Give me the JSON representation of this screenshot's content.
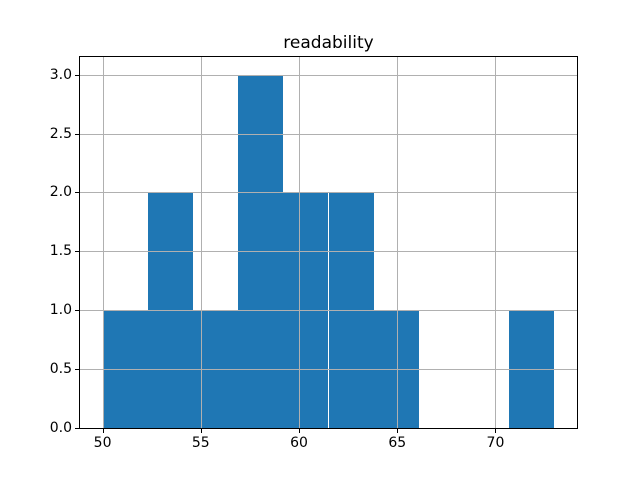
{
  "figure": {
    "title": "readability"
  },
  "colors": {
    "bar": "#1f77b4",
    "grid": "#b0b0b0",
    "spine": "#000000",
    "background": "#ffffff",
    "text": "#000000"
  },
  "chart_data": {
    "type": "bar",
    "subtype": "histogram",
    "title": "readability",
    "xlabel": "",
    "ylabel": "",
    "bin_edges": [
      50.0,
      52.3,
      54.6,
      56.9,
      59.2,
      61.5,
      63.8,
      66.1,
      68.4,
      70.7,
      73.0
    ],
    "counts": [
      1,
      2,
      1,
      3,
      2,
      2,
      1,
      0,
      0,
      1
    ],
    "xlim": [
      48.85,
      74.15
    ],
    "ylim": [
      0,
      3.15
    ],
    "x_ticks": [
      50,
      55,
      60,
      65,
      70
    ],
    "x_tick_labels": [
      "50",
      "55",
      "60",
      "65",
      "70"
    ],
    "y_ticks": [
      0.0,
      0.5,
      1.0,
      1.5,
      2.0,
      2.5,
      3.0
    ],
    "y_tick_labels": [
      "0.0",
      "0.5",
      "1.0",
      "1.5",
      "2.0",
      "2.5",
      "3.0"
    ],
    "grid": true,
    "grid_above_bars": true,
    "legend": false
  }
}
